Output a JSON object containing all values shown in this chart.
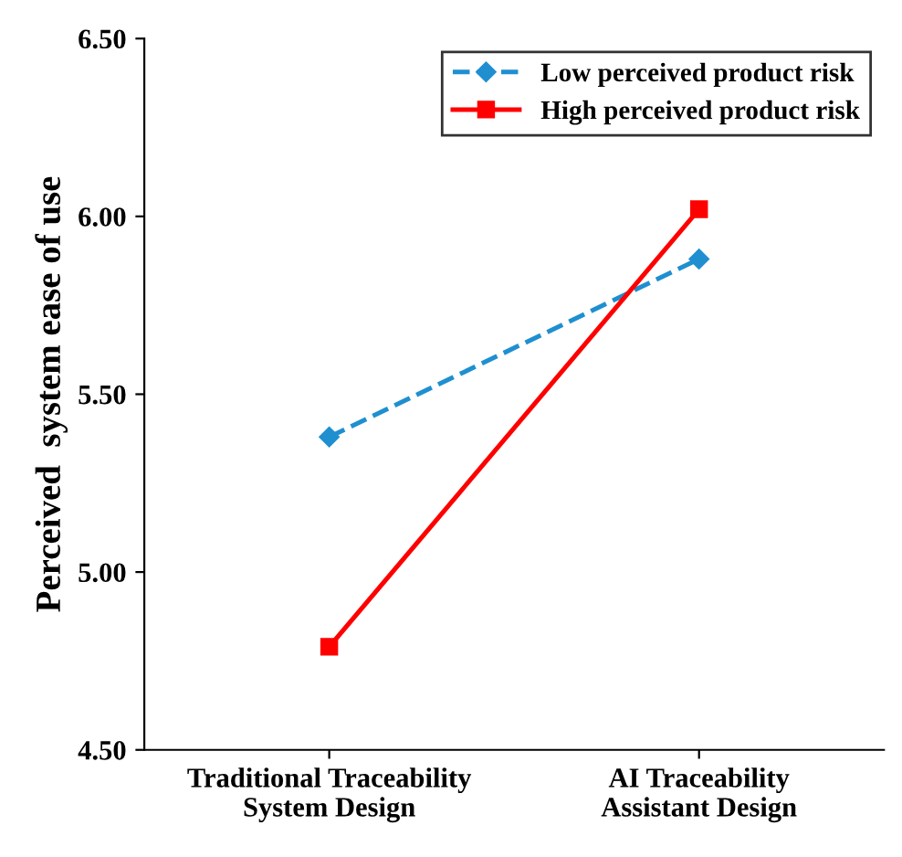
{
  "chart_data": {
    "type": "line",
    "ylabel": "Perceived  system ease of use",
    "categories": [
      "Traditional Traceability\nSystem Design",
      "AI Traceability\nAssistant Design"
    ],
    "series": [
      {
        "name": "Low perceived product risk",
        "color": "#1f8fd0",
        "values": [
          5.38,
          5.88
        ],
        "marker": "diamond",
        "line_style": "dashed"
      },
      {
        "name": "High perceived product risk",
        "color": "#ff0000",
        "values": [
          4.79,
          6.02
        ],
        "marker": "square",
        "line_style": "solid"
      }
    ],
    "ylim": [
      4.5,
      6.5
    ],
    "yticks": [
      {
        "value": 4.5,
        "label": "4.50"
      },
      {
        "value": 5.0,
        "label": "5.00"
      },
      {
        "value": 5.5,
        "label": "5.50"
      },
      {
        "value": 6.0,
        "label": "6.00"
      },
      {
        "value": 6.5,
        "label": "6.50"
      }
    ],
    "legend": "top right",
    "grid": false
  }
}
